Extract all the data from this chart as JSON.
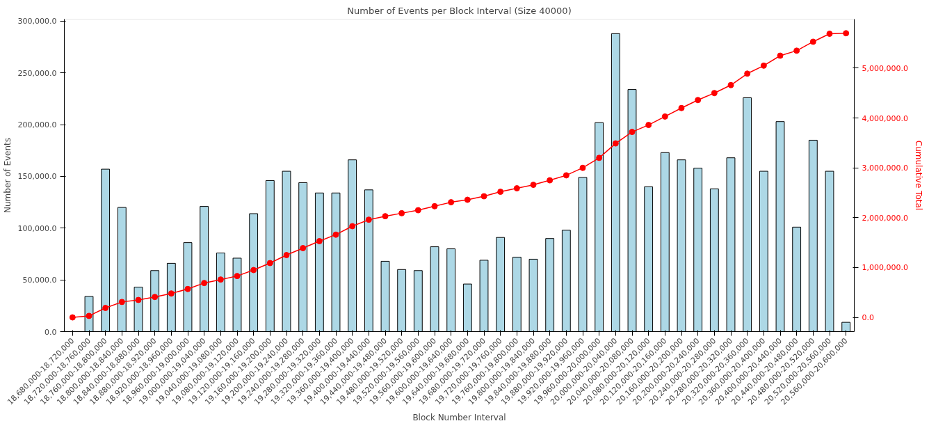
{
  "chart_data": {
    "type": "bar",
    "title": "Number of Events per Block Interval (Size 40000)",
    "xlabel": "Block Number Interval",
    "ylabel": "Number of Events",
    "y2label": "Cumulative Total",
    "categories": [
      "18,680,000-18,720,000",
      "18,720,000-18,760,000",
      "18,760,000-18,800,000",
      "18,800,000-18,840,000",
      "18,840,000-18,880,000",
      "18,880,000-18,920,000",
      "18,920,000-18,960,000",
      "18,960,000-19,000,000",
      "19,000,000-19,040,000",
      "19,040,000-19,080,000",
      "19,080,000-19,120,000",
      "19,120,000-19,160,000",
      "19,160,000-19,200,000",
      "19,200,000-19,240,000",
      "19,240,000-19,280,000",
      "19,280,000-19,320,000",
      "19,320,000-19,360,000",
      "19,360,000-19,400,000",
      "19,400,000-19,440,000",
      "19,440,000-19,480,000",
      "19,480,000-19,520,000",
      "19,520,000-19,560,000",
      "19,560,000-19,600,000",
      "19,600,000-19,640,000",
      "19,640,000-19,680,000",
      "19,680,000-19,720,000",
      "19,720,000-19,760,000",
      "19,760,000-19,800,000",
      "19,800,000-19,840,000",
      "19,840,000-19,880,000",
      "19,880,000-19,920,000",
      "19,920,000-19,960,000",
      "19,960,000-20,000,000",
      "20,000,000-20,040,000",
      "20,040,000-20,080,000",
      "20,080,000-20,120,000",
      "20,120,000-20,160,000",
      "20,160,000-20,200,000",
      "20,200,000-20,240,000",
      "20,240,000-20,280,000",
      "20,280,000-20,320,000",
      "20,320,000-20,360,000",
      "20,360,000-20,400,000",
      "20,400,000-20,440,000",
      "20,440,000-20,480,000",
      "20,480,000-20,520,000",
      "20,520,000-20,560,000",
      "20,560,000-20,600,000"
    ],
    "series": [
      {
        "color": "#add8e6",
        "values": [
          null,
          34000,
          157000,
          120000,
          43000,
          59000,
          66000,
          86000,
          121000,
          76000,
          71000,
          114000,
          146000,
          155000,
          144000,
          134000,
          134000,
          166000,
          137000,
          68000,
          60000,
          59000,
          82000,
          80000,
          46000,
          69000,
          91000,
          72000,
          70000,
          90000,
          98000,
          149000,
          202000,
          288000,
          234000,
          140000,
          173000,
          166000,
          158000,
          138000,
          168000,
          226000,
          155000,
          203000,
          101000,
          185000,
          155000,
          9000
        ]
      },
      {
        "type": "line",
        "axis": "y2",
        "color": "#ff0000",
        "marker": "circle",
        "line_style": "solid",
        "values": [
          0,
          30000,
          190000,
          310000,
          350000,
          410000,
          480000,
          570000,
          690000,
          760000,
          830000,
          950000,
          1090000,
          1250000,
          1390000,
          1530000,
          1660000,
          1830000,
          1960000,
          2030000,
          2090000,
          2150000,
          2230000,
          2310000,
          2360000,
          2430000,
          2520000,
          2590000,
          2660000,
          2750000,
          2850000,
          3000000,
          3200000,
          3490000,
          3720000,
          3860000,
          4030000,
          4200000,
          4360000,
          4500000,
          4660000,
          4890000,
          5050000,
          5250000,
          5350000,
          5530000,
          5690000,
          5700000
        ]
      }
    ],
    "ylim": [
      0,
      302000
    ],
    "yticks": [
      {
        "value": 0,
        "label": "0.0"
      },
      {
        "value": 50000,
        "label": "50,000.0"
      },
      {
        "value": 100000,
        "label": "100,000.0"
      },
      {
        "value": 150000,
        "label": "150,000.0"
      },
      {
        "value": 200000,
        "label": "200,000.0"
      },
      {
        "value": 250000,
        "label": "250,000.0"
      },
      {
        "value": 300000,
        "label": "300,000.0"
      }
    ],
    "y2lim": [
      -285000,
      5983000
    ],
    "y2ticks": [
      {
        "value": 0,
        "label": "0.0"
      },
      {
        "value": 1000000,
        "label": "1,000,000.0"
      },
      {
        "value": 2000000,
        "label": "2,000,000.0"
      },
      {
        "value": 3000000,
        "label": "3,000,000.0"
      },
      {
        "value": 4000000,
        "label": "4,000,000.0"
      },
      {
        "value": 5000000,
        "label": "5,000,000.0"
      }
    ],
    "grid": false
  }
}
